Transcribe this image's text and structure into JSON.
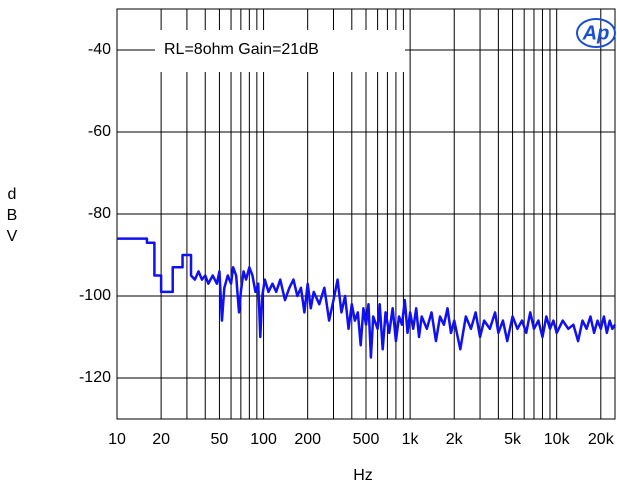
{
  "chart_data": {
    "type": "line",
    "annotation": "RL=8ohm Gain=21dB",
    "logo": "Ap",
    "xlabel": "Hz",
    "ylabel": "dBV",
    "xscale": "log",
    "grid": true,
    "xlim": [
      10,
      25000
    ],
    "ylim": [
      -130,
      -30
    ],
    "xticks": [
      10,
      20,
      50,
      100,
      200,
      500,
      {
        "value": 1000,
        "label": "1k"
      },
      {
        "value": 2000,
        "label": "2k"
      },
      {
        "value": 5000,
        "label": "5k"
      },
      {
        "value": 10000,
        "label": "10k"
      },
      {
        "value": 20000,
        "label": "20k"
      }
    ],
    "xminor": [
      30,
      40,
      60,
      70,
      80,
      90,
      300,
      400,
      600,
      700,
      800,
      900,
      3000,
      4000,
      6000,
      7000,
      8000,
      9000
    ],
    "yticks": [
      -40,
      -60,
      -80,
      -100,
      -120
    ],
    "x": [
      10,
      16,
      16,
      18,
      18,
      20,
      20,
      24,
      24,
      28,
      28,
      32,
      32,
      34,
      36,
      38,
      40,
      42,
      45,
      48,
      50,
      52,
      54,
      57,
      60,
      62,
      65,
      68,
      70,
      73,
      76,
      80,
      84,
      88,
      92,
      95,
      98,
      102,
      108,
      115,
      122,
      130,
      140,
      150,
      160,
      170,
      180,
      190,
      200,
      210,
      220,
      240,
      260,
      280,
      300,
      320,
      340,
      360,
      380,
      400,
      420,
      440,
      460,
      480,
      500,
      520,
      540,
      560,
      600,
      620,
      650,
      680,
      720,
      760,
      800,
      840,
      880,
      920,
      960,
      1000,
      1050,
      1100,
      1150,
      1200,
      1300,
      1400,
      1500,
      1600,
      1700,
      1800,
      1900,
      2000,
      2200,
      2400,
      2600,
      2800,
      3000,
      3200,
      3500,
      3800,
      4000,
      4300,
      4600,
      5000,
      5400,
      5800,
      6200,
      6600,
      7000,
      7500,
      8000,
      8500,
      9000,
      9500,
      10000,
      11000,
      12000,
      13000,
      14000,
      15000,
      16000,
      17000,
      18000,
      19000,
      20000,
      21000,
      22000,
      23000,
      24000,
      25000
    ],
    "series": [
      {
        "color": "#1010f0",
        "values": [
          -86,
          -86,
          -87,
          -87,
          -95,
          -95,
          -99,
          -99,
          -93,
          -93,
          -90,
          -90,
          -95,
          -96,
          -94,
          -96,
          -95,
          -97,
          -95,
          -97,
          -94,
          -106,
          -98,
          -95,
          -97,
          -93,
          -95,
          -104,
          -99,
          -94,
          -96,
          -93,
          -95,
          -99,
          -97,
          -110,
          -100,
          -96,
          -99,
          -97,
          -99,
          -96,
          -101,
          -98,
          -96,
          -100,
          -98,
          -104,
          -97,
          -103,
          -99,
          -102,
          -98,
          -106,
          -101,
          -96,
          -104,
          -100,
          -108,
          -102,
          -106,
          -104,
          -112,
          -103,
          -107,
          -102,
          -115,
          -105,
          -108,
          -102,
          -113,
          -104,
          -109,
          -103,
          -111,
          -105,
          -107,
          -101,
          -109,
          -104,
          -108,
          -103,
          -110,
          -105,
          -108,
          -104,
          -111,
          -105,
          -107,
          -103,
          -109,
          -106,
          -113,
          -105,
          -108,
          -104,
          -110,
          -106,
          -108,
          -104,
          -109,
          -106,
          -111,
          -105,
          -108,
          -106,
          -109,
          -104,
          -108,
          -106,
          -110,
          -105,
          -108,
          -106,
          -109,
          -106,
          -108,
          -107,
          -111,
          -106,
          -108,
          -105,
          -109,
          -106,
          -108,
          -105,
          -109,
          -106,
          -108,
          -107
        ]
      }
    ]
  }
}
